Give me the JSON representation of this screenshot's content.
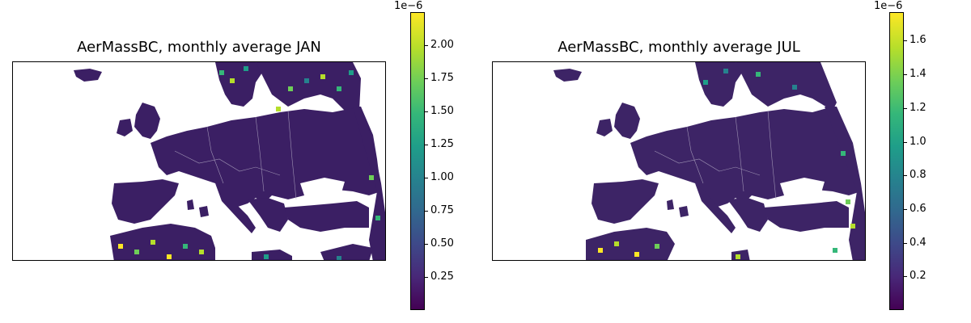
{
  "panels": [
    {
      "title": "AerMassBC, monthly average JAN",
      "colorbar": {
        "exponent_label": "1e−6",
        "ticks": [
          "0.25",
          "0.50",
          "0.75",
          "1.00",
          "1.25",
          "1.50",
          "1.75",
          "2.00"
        ],
        "tick_values": [
          0.25,
          0.5,
          0.75,
          1.0,
          1.25,
          1.5,
          1.75,
          2.0
        ],
        "range": [
          0.0,
          2.25
        ]
      }
    },
    {
      "title": "AerMassBC, monthly average JUL",
      "colorbar": {
        "exponent_label": "1e−6",
        "ticks": [
          "0.2",
          "0.4",
          "0.6",
          "0.8",
          "1.0",
          "1.2",
          "1.4",
          "1.6"
        ],
        "tick_values": [
          0.2,
          0.4,
          0.6,
          0.8,
          1.0,
          1.2,
          1.4,
          1.6
        ],
        "range": [
          0.0,
          1.77
        ]
      }
    }
  ],
  "colormap": "viridis",
  "colors": {
    "low": "#440154",
    "mid": "#21918c",
    "high": "#fde725"
  }
}
